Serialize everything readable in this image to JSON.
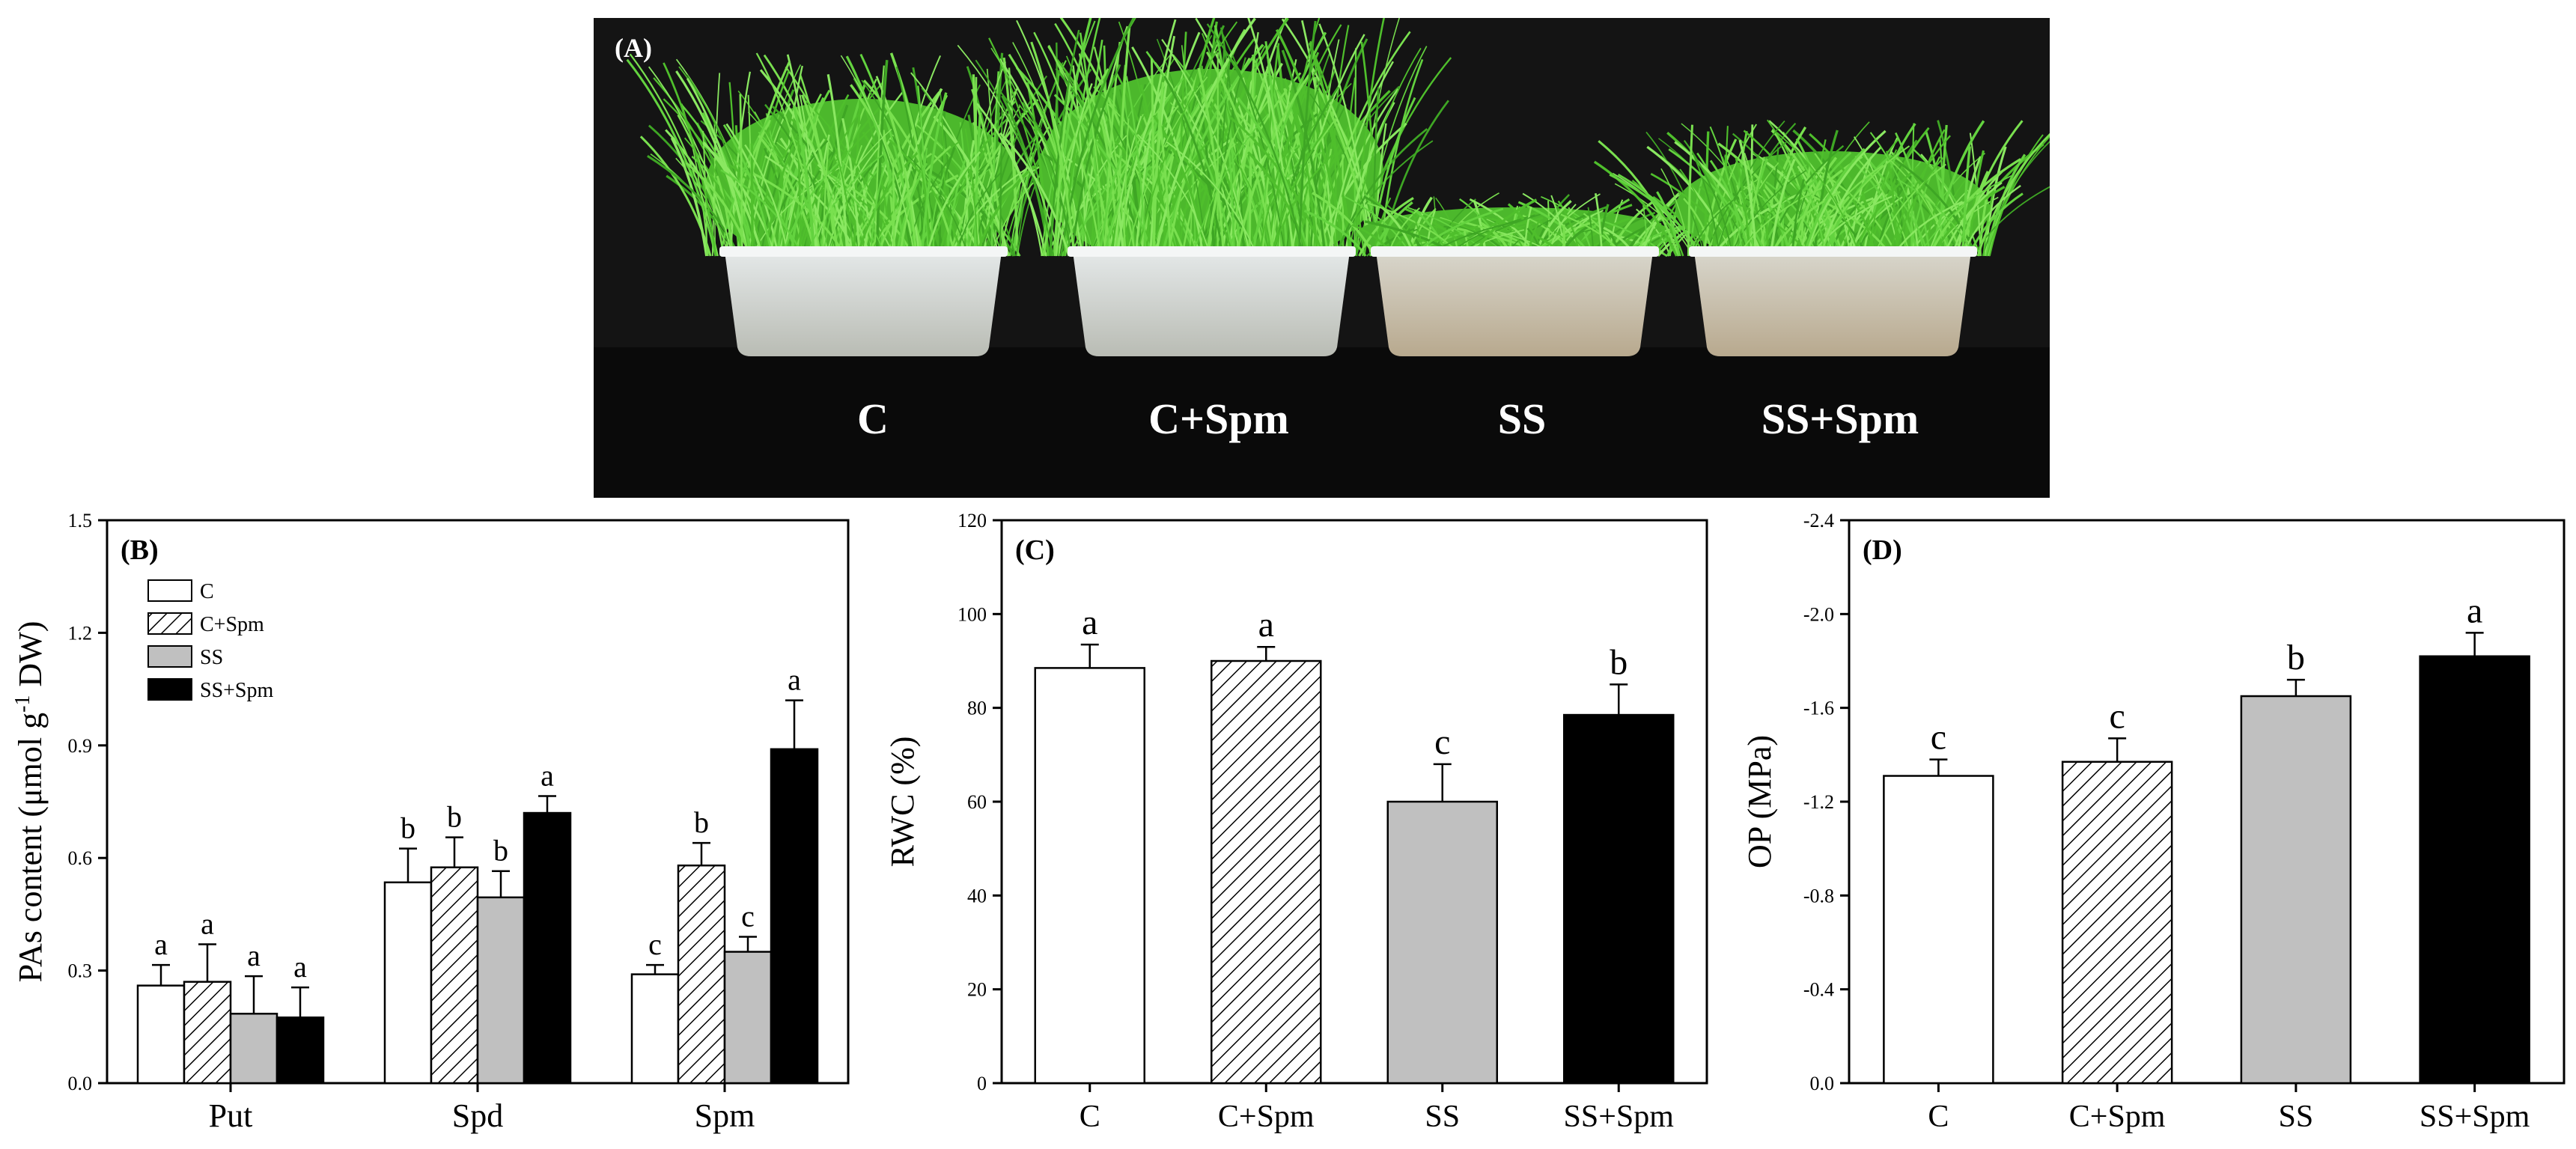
{
  "photo": {
    "panel_label": "(A)",
    "labels": [
      "C",
      "C+Spm",
      "SS",
      "SS+Spm"
    ]
  },
  "colors": {
    "C": "#ffffff",
    "C+Spm": "hatch",
    "SS": "#c0c0c0",
    "SS+Spm": "#000000",
    "grass": "#5fcf3a",
    "background": "#111111"
  },
  "chart_data": [
    {
      "type": "bar",
      "panel_label": "(B)",
      "ylabel": "PAs content (μmol g⁻¹ DW)",
      "ylabel_main": "PAs content (μmol g",
      "ylabel_sup": "-1",
      "ylabel_tail": " DW)",
      "ylim": [
        0,
        1.5
      ],
      "yticks": [
        "0.0",
        "0.3",
        "0.6",
        "0.9",
        "1.2",
        "1.5"
      ],
      "categories": [
        "Put",
        "Spd",
        "Spm"
      ],
      "legend_position": "top-left",
      "series": [
        {
          "name": "C",
          "values": [
            0.26,
            0.535,
            0.29
          ],
          "errors": [
            0.055,
            0.09,
            0.025
          ],
          "letters": [
            "a",
            "b",
            "c"
          ]
        },
        {
          "name": "C+Spm",
          "values": [
            0.27,
            0.575,
            0.58
          ],
          "errors": [
            0.1,
            0.08,
            0.06
          ],
          "letters": [
            "a",
            "b",
            "b"
          ]
        },
        {
          "name": "SS",
          "values": [
            0.185,
            0.495,
            0.35
          ],
          "errors": [
            0.1,
            0.07,
            0.04
          ],
          "letters": [
            "a",
            "b",
            "c"
          ]
        },
        {
          "name": "SS+Spm",
          "values": [
            0.175,
            0.72,
            0.89
          ],
          "errors": [
            0.08,
            0.045,
            0.13
          ],
          "letters": [
            "a",
            "a",
            "a"
          ]
        }
      ]
    },
    {
      "type": "bar",
      "panel_label": "(C)",
      "ylabel": "RWC (%)",
      "ylim": [
        0,
        120
      ],
      "yticks": [
        "0",
        "20",
        "40",
        "60",
        "80",
        "100",
        "120"
      ],
      "categories": [
        "C",
        "C+Spm",
        "SS",
        "SS+Spm"
      ],
      "values": [
        88.5,
        90,
        60,
        78.5
      ],
      "errors": [
        5,
        3,
        8,
        6.5
      ],
      "letters": [
        "a",
        "a",
        "c",
        "b"
      ]
    },
    {
      "type": "bar",
      "panel_label": "(D)",
      "ylabel": "OP (MPa)",
      "ylim": [
        0,
        -2.4
      ],
      "yticks": [
        "0.0",
        "-0.4",
        "-0.8",
        "-1.2",
        "-1.6",
        "-2.0",
        "-2.4"
      ],
      "categories": [
        "C",
        "C+Spm",
        "SS",
        "SS+Spm"
      ],
      "values": [
        -1.31,
        -1.37,
        -1.65,
        -1.82
      ],
      "errors": [
        0.07,
        0.1,
        0.07,
        0.1
      ],
      "letters": [
        "c",
        "c",
        "b",
        "a"
      ]
    }
  ]
}
